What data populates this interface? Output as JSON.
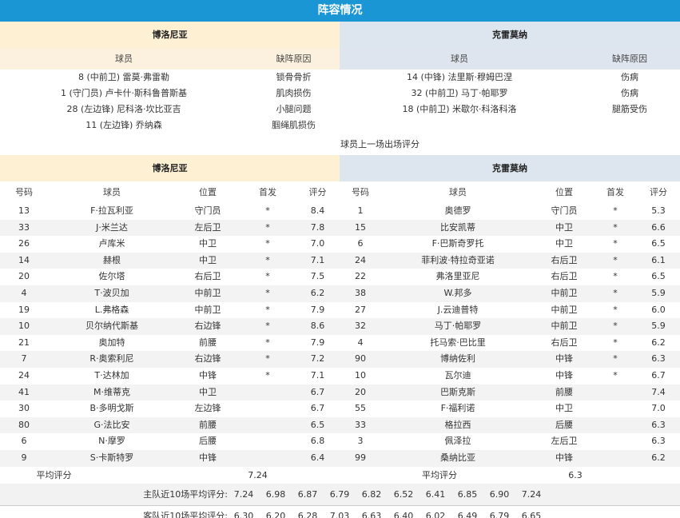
{
  "title": "阵容情况",
  "home_team": "博洛尼亚",
  "away_team": "克雷莫纳",
  "injury_headers": {
    "player": "球员",
    "reason": "缺阵原因"
  },
  "home_injuries": [
    {
      "player": "8 (中前卫) 雷莫·弗雷勒",
      "reason": "锁骨骨折"
    },
    {
      "player": "1 (守门员) 卢卡什·斯科鲁普斯基",
      "reason": "肌肉损伤"
    },
    {
      "player": "28 (左边锋) 尼科洛·坎比亚吉",
      "reason": "小腿问题"
    },
    {
      "player": "11 (左边锋) 乔纳森",
      "reason": "腘绳肌损伤"
    }
  ],
  "away_injuries": [
    {
      "player": "14 (中锋) 法里斯·穆姆巴涅",
      "reason": "伤病"
    },
    {
      "player": "32 (中前卫) 马丁·帕耶罗",
      "reason": "伤病"
    },
    {
      "player": "18 (中前卫) 米歇尔·科洛科洛",
      "reason": "腿筋受伤"
    }
  ],
  "ratings_caption": "球员上一场出场评分",
  "rating_headers": {
    "number": "号码",
    "player": "球员",
    "position": "位置",
    "starter": "首发",
    "rating": "评分"
  },
  "home_players": [
    [
      "13",
      "F·拉瓦利亚",
      "守门员",
      "*",
      "8.4"
    ],
    [
      "33",
      "J·米兰达",
      "左后卫",
      "*",
      "7.8"
    ],
    [
      "26",
      "卢库米",
      "中卫",
      "*",
      "7.0"
    ],
    [
      "14",
      "赫根",
      "中卫",
      "*",
      "7.1"
    ],
    [
      "20",
      "佐尔塔",
      "右后卫",
      "*",
      "7.5"
    ],
    [
      "4",
      "T·波贝加",
      "中前卫",
      "*",
      "6.2"
    ],
    [
      "19",
      "L.弗格森",
      "中前卫",
      "*",
      "7.9"
    ],
    [
      "10",
      "贝尔纳代斯基",
      "右边锋",
      "*",
      "8.6"
    ],
    [
      "21",
      "奥加特",
      "前腰",
      "*",
      "7.9"
    ],
    [
      "7",
      "R·奥索利尼",
      "右边锋",
      "*",
      "7.2"
    ],
    [
      "24",
      "T·达林加",
      "中锋",
      "*",
      "7.1"
    ],
    [
      "41",
      "M·维蒂克",
      "中卫",
      "",
      "6.7"
    ],
    [
      "30",
      "B·多明戈斯",
      "左边锋",
      "",
      "6.7"
    ],
    [
      "80",
      "G·法比安",
      "前腰",
      "",
      "6.5"
    ],
    [
      "6",
      "N·摩罗",
      "后腰",
      "",
      "6.8"
    ],
    [
      "9",
      "S·卡斯特罗",
      "中锋",
      "",
      "6.4"
    ]
  ],
  "away_players": [
    [
      "1",
      "奥德罗",
      "守门员",
      "*",
      "5.3"
    ],
    [
      "15",
      "比安凯蒂",
      "中卫",
      "*",
      "6.6"
    ],
    [
      "6",
      "F·巴斯奇罗托",
      "中卫",
      "*",
      "6.5"
    ],
    [
      "24",
      "菲利波·特拉奇亚诺",
      "右后卫",
      "*",
      "6.1"
    ],
    [
      "22",
      "弗洛里亚尼",
      "右后卫",
      "*",
      "6.5"
    ],
    [
      "38",
      "W.邦多",
      "中前卫",
      "*",
      "5.9"
    ],
    [
      "27",
      "J.云迪普特",
      "中前卫",
      "*",
      "6.0"
    ],
    [
      "32",
      "马丁·帕耶罗",
      "中前卫",
      "*",
      "5.9"
    ],
    [
      "4",
      "托马索·巴比里",
      "右后卫",
      "*",
      "6.2"
    ],
    [
      "90",
      "博纳佐利",
      "中锋",
      "*",
      "6.3"
    ],
    [
      "10",
      "瓦尔迪",
      "中锋",
      "*",
      "6.7"
    ],
    [
      "20",
      "巴斯克斯",
      "前腰",
      "",
      "7.4"
    ],
    [
      "55",
      "F·福利诺",
      "中卫",
      "",
      "7.0"
    ],
    [
      "33",
      "格拉西",
      "后腰",
      "",
      "6.3"
    ],
    [
      "3",
      "佩泽拉",
      "左后卫",
      "",
      "6.3"
    ],
    [
      "99",
      "桑纳比亚",
      "中锋",
      "",
      "6.2"
    ]
  ],
  "average": {
    "label": "平均评分",
    "home": "7.24",
    "away": "6.3"
  },
  "home_last10": {
    "label": "主队近10场平均评分:",
    "values": [
      "7.24",
      "6.98",
      "6.87",
      "6.79",
      "6.82",
      "6.52",
      "6.41",
      "6.85",
      "6.90",
      "7.24"
    ]
  },
  "away_last10": {
    "label": "客队近10场平均评分:",
    "values": [
      "6.30",
      "6.20",
      "6.28",
      "7.03",
      "6.63",
      "6.40",
      "6.02",
      "6.49",
      "6.79",
      "6.65"
    ]
  }
}
